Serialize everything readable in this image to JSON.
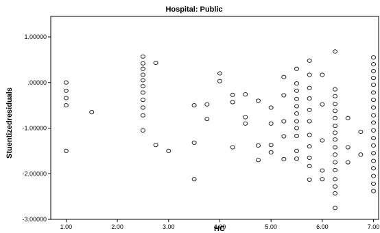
{
  "chart_data": {
    "type": "scatter",
    "title": "Hospital: Public",
    "xlabel": "HC",
    "ylabel": "Stuentizedresiduals",
    "xlim": [
      0.7,
      7.1
    ],
    "ylim": [
      -3.0,
      1.45
    ],
    "x_ticks": [
      1,
      2,
      3,
      4,
      5,
      6,
      7
    ],
    "x_tick_labels": [
      "1.00",
      "2.00",
      "3.00",
      "4.00",
      "5.00",
      "6.00",
      "7.00"
    ],
    "y_ticks": [
      1,
      0,
      -1,
      -2,
      -3
    ],
    "y_tick_labels": [
      "1.00000",
      ".00000",
      "-1.00000",
      "-2.00000",
      "-3.00000"
    ],
    "grid": false,
    "legend": "none",
    "marker": "hollow-circle",
    "points": [
      [
        1.0,
        0.0
      ],
      [
        1.0,
        -0.18
      ],
      [
        1.0,
        -0.34
      ],
      [
        1.0,
        -0.5
      ],
      [
        1.0,
        -1.5
      ],
      [
        1.5,
        -0.65
      ],
      [
        2.5,
        0.57
      ],
      [
        2.5,
        0.42
      ],
      [
        2.5,
        0.3
      ],
      [
        2.5,
        0.17
      ],
      [
        2.5,
        0.05
      ],
      [
        2.5,
        -0.08
      ],
      [
        2.5,
        -0.22
      ],
      [
        2.5,
        -0.38
      ],
      [
        2.5,
        -0.55
      ],
      [
        2.5,
        -0.72
      ],
      [
        2.5,
        -1.05
      ],
      [
        2.75,
        0.43
      ],
      [
        2.75,
        -1.37
      ],
      [
        3.0,
        -1.5
      ],
      [
        3.5,
        -0.5
      ],
      [
        3.5,
        -1.32
      ],
      [
        3.5,
        -2.12
      ],
      [
        3.75,
        -0.48
      ],
      [
        3.75,
        -0.8
      ],
      [
        4.0,
        0.2
      ],
      [
        4.0,
        0.03
      ],
      [
        4.25,
        -0.27
      ],
      [
        4.25,
        -0.43
      ],
      [
        4.25,
        -1.42
      ],
      [
        4.5,
        -0.26
      ],
      [
        4.5,
        -0.76
      ],
      [
        4.5,
        -0.9
      ],
      [
        4.75,
        -0.4
      ],
      [
        4.75,
        -1.38
      ],
      [
        4.75,
        -1.7
      ],
      [
        5.0,
        -0.55
      ],
      [
        5.0,
        -0.9
      ],
      [
        5.0,
        -1.37
      ],
      [
        5.0,
        -1.53
      ],
      [
        5.25,
        0.12
      ],
      [
        5.25,
        -0.28
      ],
      [
        5.25,
        -0.85
      ],
      [
        5.25,
        -1.18
      ],
      [
        5.25,
        -1.68
      ],
      [
        5.5,
        0.3
      ],
      [
        5.5,
        -0.02
      ],
      [
        5.5,
        -0.18
      ],
      [
        5.5,
        -0.36
      ],
      [
        5.5,
        -0.52
      ],
      [
        5.5,
        -0.68
      ],
      [
        5.5,
        -0.85
      ],
      [
        5.5,
        -1.0
      ],
      [
        5.5,
        -1.17
      ],
      [
        5.5,
        -1.5
      ],
      [
        5.5,
        -1.67
      ],
      [
        5.75,
        0.48
      ],
      [
        5.75,
        0.17
      ],
      [
        5.75,
        -0.12
      ],
      [
        5.75,
        -0.35
      ],
      [
        5.75,
        -0.6
      ],
      [
        5.75,
        -0.85
      ],
      [
        5.75,
        -1.15
      ],
      [
        5.75,
        -1.4
      ],
      [
        5.75,
        -1.65
      ],
      [
        5.75,
        -1.83
      ],
      [
        5.75,
        -2.13
      ],
      [
        6.0,
        0.17
      ],
      [
        6.0,
        -0.48
      ],
      [
        6.0,
        -1.27
      ],
      [
        6.0,
        -1.93
      ],
      [
        6.0,
        -2.12
      ],
      [
        6.25,
        0.68
      ],
      [
        6.25,
        -0.15
      ],
      [
        6.25,
        -0.3
      ],
      [
        6.25,
        -0.47
      ],
      [
        6.25,
        -0.62
      ],
      [
        6.25,
        -0.78
      ],
      [
        6.25,
        -0.95
      ],
      [
        6.25,
        -1.1
      ],
      [
        6.25,
        -1.25
      ],
      [
        6.25,
        -1.42
      ],
      [
        6.25,
        -1.58
      ],
      [
        6.25,
        -1.75
      ],
      [
        6.25,
        -1.92
      ],
      [
        6.25,
        -2.12
      ],
      [
        6.25,
        -2.28
      ],
      [
        6.25,
        -2.43
      ],
      [
        6.25,
        -2.75
      ],
      [
        6.5,
        -0.78
      ],
      [
        6.5,
        -1.42
      ],
      [
        6.5,
        -1.75
      ],
      [
        6.75,
        -1.08
      ],
      [
        6.75,
        -1.58
      ],
      [
        7.0,
        0.55
      ],
      [
        7.0,
        0.4
      ],
      [
        7.0,
        0.25
      ],
      [
        7.0,
        0.1
      ],
      [
        7.0,
        -0.05
      ],
      [
        7.0,
        -0.22
      ],
      [
        7.0,
        -0.38
      ],
      [
        7.0,
        -0.55
      ],
      [
        7.0,
        -0.72
      ],
      [
        7.0,
        -0.88
      ],
      [
        7.0,
        -1.05
      ],
      [
        7.0,
        -1.22
      ],
      [
        7.0,
        -1.38
      ],
      [
        7.0,
        -1.55
      ],
      [
        7.0,
        -1.72
      ],
      [
        7.0,
        -1.88
      ],
      [
        7.0,
        -2.05
      ],
      [
        7.0,
        -2.22
      ],
      [
        7.0,
        -2.38
      ]
    ]
  }
}
